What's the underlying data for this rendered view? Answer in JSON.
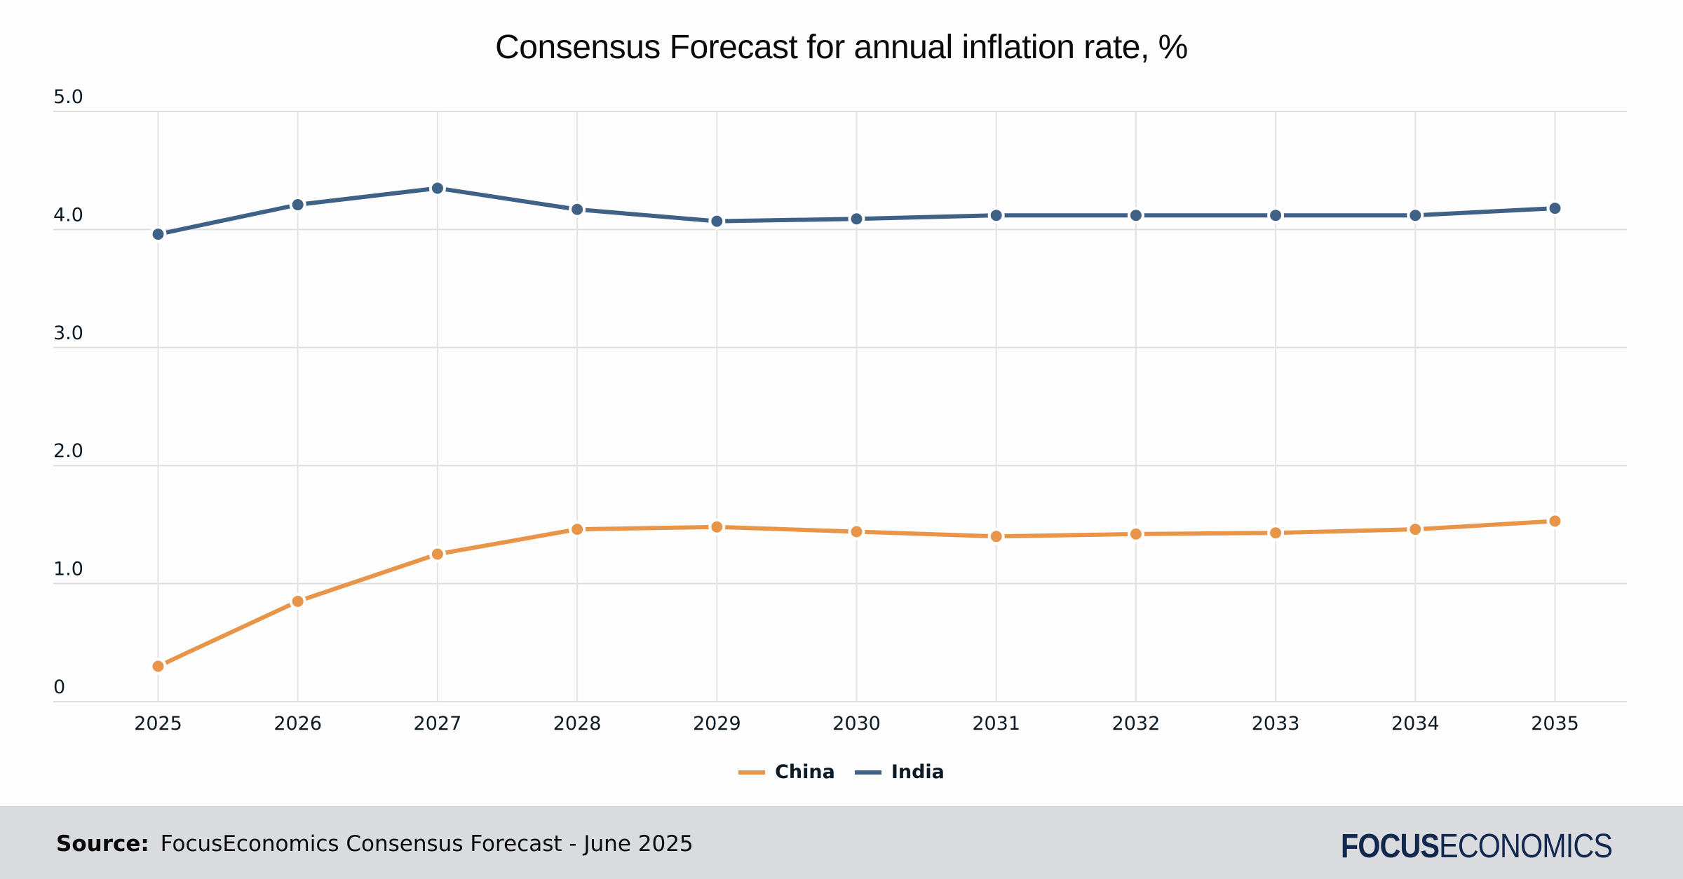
{
  "chart_data": {
    "type": "line",
    "title": "Consensus Forecast for annual inflation rate, %",
    "xlabel": "",
    "ylabel": "",
    "x": [
      "2025",
      "2026",
      "2027",
      "2028",
      "2029",
      "2030",
      "2031",
      "2032",
      "2033",
      "2034",
      "2035"
    ],
    "ylim": [
      0,
      5
    ],
    "yticks": [
      0,
      1,
      2,
      3,
      4,
      5
    ],
    "ytick_labels": [
      "0",
      "1.0",
      "2.0",
      "3.0",
      "4.0",
      "5.0"
    ],
    "grid": true,
    "legend_position": "bottom-center",
    "series": [
      {
        "name": "China",
        "color": "#e8954a",
        "values": [
          0.3,
          0.85,
          1.25,
          1.46,
          1.48,
          1.44,
          1.4,
          1.42,
          1.43,
          1.46,
          1.53
        ]
      },
      {
        "name": "India",
        "color": "#3f6186",
        "values": [
          3.96,
          4.21,
          4.35,
          4.17,
          4.07,
          4.09,
          4.12,
          4.12,
          4.12,
          4.12,
          4.18
        ]
      }
    ]
  },
  "footer": {
    "source_label": "Source:",
    "source_text": "FocusEconomics Consensus Forecast - June 2025",
    "logo_bold": "FOCUS",
    "logo_light": "ECONOMICS"
  }
}
